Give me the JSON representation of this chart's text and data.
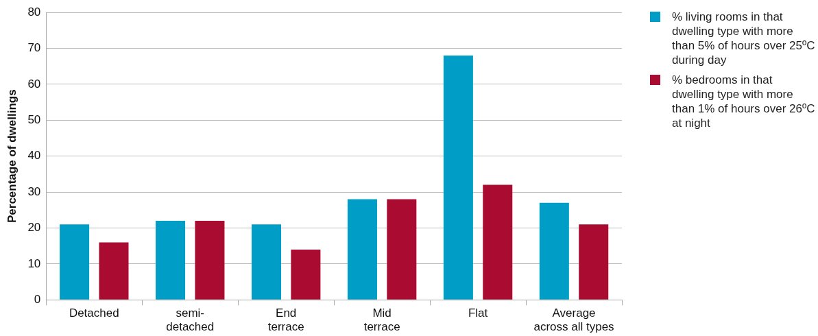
{
  "chart_data": {
    "type": "bar",
    "ylabel": "Percentage of dwellings",
    "categories": [
      "Detached",
      "semi-\ndetached",
      "End\nterrace",
      "Mid\nterrace",
      "Flat",
      "Average\nacross all types"
    ],
    "series": [
      {
        "name": "% living rooms in that dwelling type with more than 5% of hours over 25ºC during day",
        "color": "#009ec6",
        "values": [
          21,
          22,
          21,
          28,
          68,
          27
        ]
      },
      {
        "name": "% bedrooms in that dwelling type with more than 1% of hours over 26ºC at night",
        "color": "#a90c30",
        "values": [
          16,
          22,
          14,
          28,
          32,
          21
        ]
      }
    ],
    "ylim": [
      0,
      80
    ],
    "yticks": [
      0,
      10,
      20,
      30,
      40,
      50,
      60,
      70,
      80
    ],
    "grid": "y",
    "legend": "top right"
  }
}
